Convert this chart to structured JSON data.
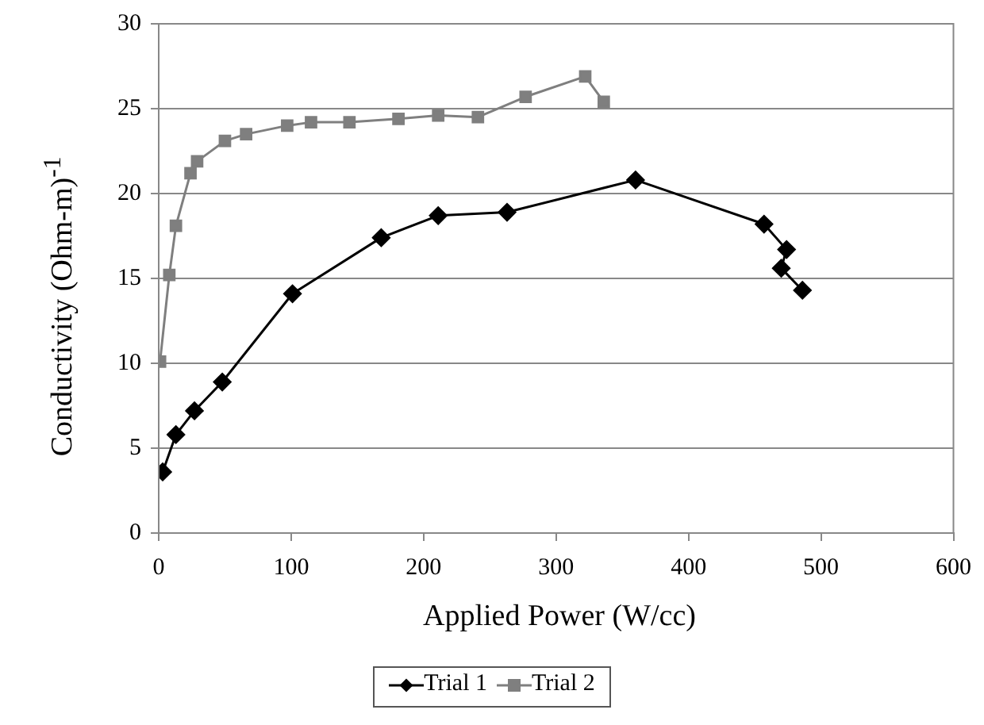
{
  "chart_data": {
    "type": "line",
    "xlabel": "Applied Power (W/cc)",
    "ylabel": "Conductivity (Ohm-m)$^{-1}$",
    "xlim": [
      0,
      600
    ],
    "xticks": [
      0,
      100,
      200,
      300,
      400,
      500,
      600
    ],
    "ylim": [
      0,
      30
    ],
    "yticks": [
      0,
      5,
      10,
      15,
      20,
      25,
      30
    ],
    "grid": "y",
    "legend": "bottom",
    "line_style": "solid",
    "series": [
      {
        "name": "Trial 1",
        "color": "#000000",
        "marker": "diamond",
        "x": [
          3,
          13,
          27,
          48,
          101,
          168,
          211,
          263,
          360,
          457,
          474,
          470,
          486
        ],
        "values": [
          3.6,
          5.8,
          7.2,
          8.9,
          14.1,
          17.4,
          18.7,
          18.9,
          20.8,
          18.2,
          16.7,
          15.6,
          14.3
        ]
      },
      {
        "name": "Trial  2",
        "color": "#7f7f7f",
        "marker": "square",
        "x": [
          1,
          8,
          13,
          24,
          29,
          50,
          66,
          97,
          115,
          144,
          181,
          211,
          241,
          277,
          322,
          336
        ],
        "values": [
          10.1,
          15.2,
          18.1,
          21.2,
          21.9,
          23.1,
          23.5,
          24.0,
          24.2,
          24.2,
          24.4,
          24.6,
          24.5,
          25.7,
          26.9,
          25.4
        ]
      }
    ]
  }
}
